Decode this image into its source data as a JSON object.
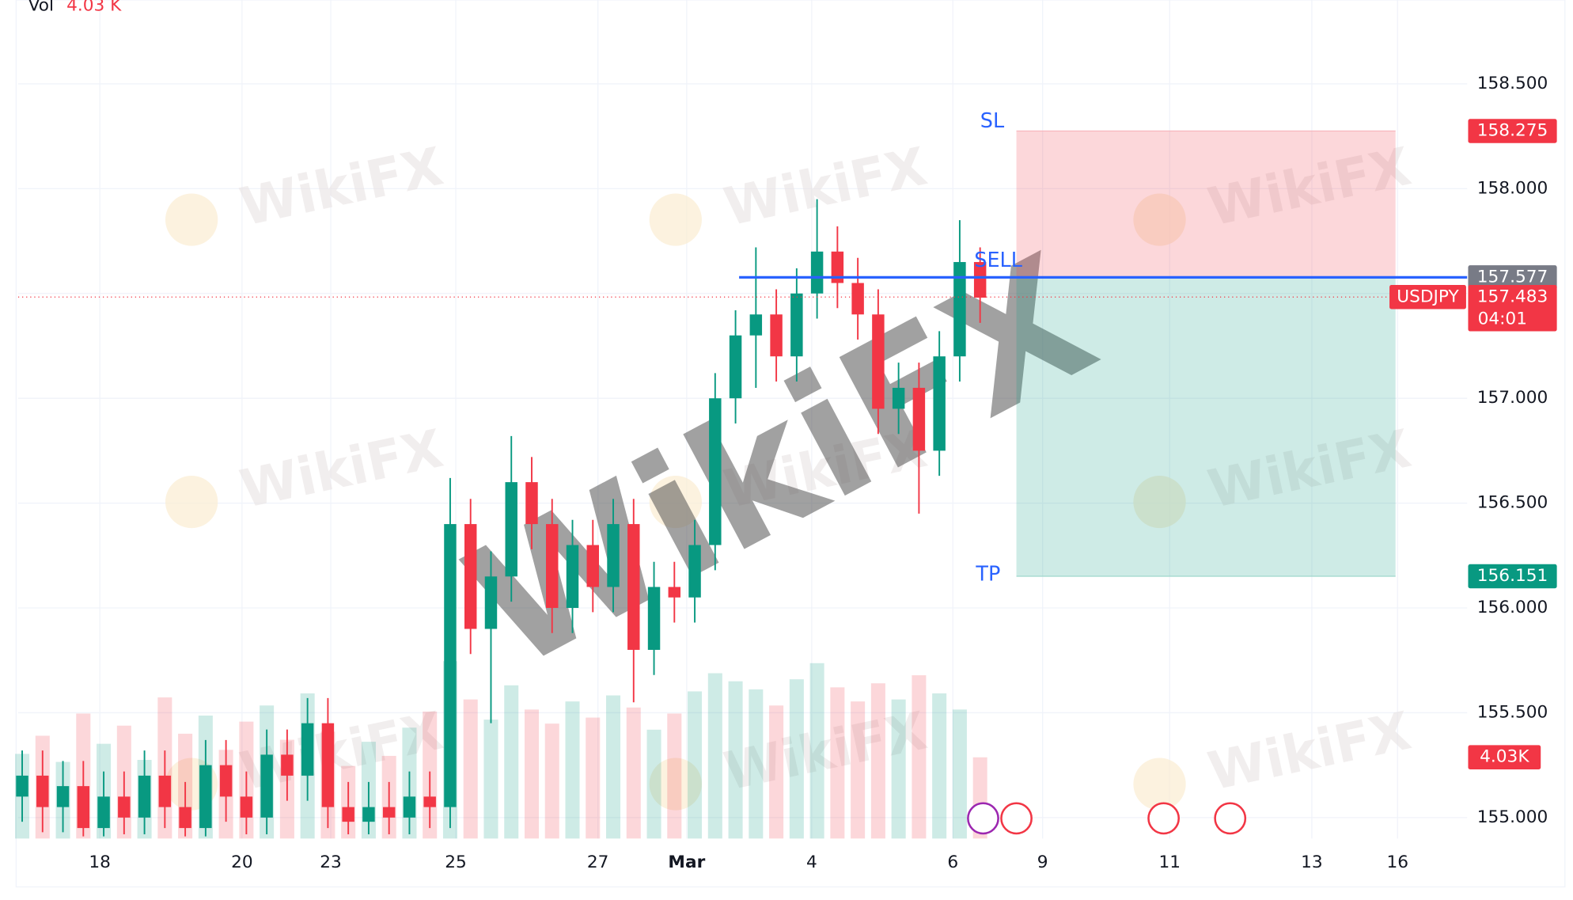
{
  "chart_data": {
    "type": "candlestick",
    "symbol": "USDJPY",
    "volume_label": "Vol",
    "volume_value": {
      "value": 4030,
      "label": "4.03 K"
    },
    "volume_tag": {
      "value": 4030,
      "label": "4.03K"
    },
    "countdown": "04:01",
    "watermark": "WikiFX",
    "x_labels": [
      "18",
      "20",
      "23",
      "25",
      "27",
      "Mar",
      "4",
      "6",
      "9",
      "11",
      "13",
      "16"
    ],
    "ylim": [
      154.9,
      158.9
    ],
    "yticks": [
      {
        "value": 155,
        "label": "155.000"
      },
      {
        "value": 155.5,
        "label": "155.500"
      },
      {
        "value": 156,
        "label": "156.000"
      },
      {
        "value": 156.5,
        "label": "156.500"
      },
      {
        "value": 157,
        "label": "157.000"
      },
      {
        "value": 157.5,
        "label": "157.500"
      },
      {
        "value": 158,
        "label": "158.000"
      },
      {
        "value": 158.5,
        "label": "158.500"
      }
    ],
    "grid": true,
    "up_color": "#089981",
    "down_color": "#f23645",
    "open": [
      155.1,
      155.2,
      155.05,
      155.15,
      154.95,
      155.1,
      155.0,
      155.2,
      155.05,
      154.95,
      155.25,
      155.1,
      155.0,
      155.3,
      155.2,
      155.45,
      155.05,
      154.98,
      155.05,
      155.0,
      155.1,
      155.05,
      156.4,
      155.9,
      156.15,
      156.6,
      156.4,
      156.0,
      156.3,
      156.1,
      156.4,
      155.8,
      156.1,
      156.05,
      156.3,
      157.0,
      157.3,
      157.4,
      157.2,
      157.5,
      157.7,
      157.55,
      157.4,
      156.95,
      157.05,
      156.75,
      157.2,
      157.65
    ],
    "high": [
      155.32,
      155.32,
      155.27,
      155.27,
      155.22,
      155.22,
      155.32,
      155.32,
      155.17,
      155.37,
      155.37,
      155.22,
      155.42,
      155.42,
      155.57,
      155.57,
      155.17,
      155.17,
      155.17,
      155.22,
      155.22,
      156.62,
      156.52,
      156.27,
      156.82,
      156.72,
      156.52,
      156.42,
      156.42,
      156.52,
      156.52,
      156.22,
      156.22,
      156.42,
      157.12,
      157.42,
      157.72,
      157.52,
      157.62,
      157.95,
      157.82,
      157.67,
      157.52,
      157.17,
      157.17,
      157.32,
      157.85,
      157.72
    ],
    "low": [
      154.98,
      154.93,
      154.93,
      154.91,
      154.91,
      154.92,
      154.92,
      154.95,
      154.91,
      154.91,
      154.98,
      154.92,
      154.92,
      155.08,
      155.08,
      154.95,
      154.92,
      154.92,
      154.92,
      154.92,
      154.95,
      154.95,
      155.78,
      155.45,
      156.03,
      156.28,
      155.88,
      155.88,
      155.98,
      155.98,
      155.55,
      155.68,
      155.93,
      155.93,
      156.18,
      156.88,
      157.05,
      157.08,
      157.08,
      157.38,
      157.43,
      157.28,
      156.83,
      156.83,
      156.45,
      156.63,
      157.08,
      157.36
    ],
    "close": [
      155.2,
      155.05,
      155.15,
      154.95,
      155.1,
      155.0,
      155.2,
      155.05,
      154.95,
      155.25,
      155.1,
      155.0,
      155.3,
      155.2,
      155.45,
      155.05,
      154.98,
      155.05,
      155.0,
      155.1,
      155.05,
      156.4,
      155.9,
      156.15,
      156.6,
      156.4,
      156.0,
      156.3,
      156.1,
      156.4,
      155.8,
      156.1,
      156.05,
      156.3,
      157.0,
      157.3,
      157.4,
      157.2,
      157.5,
      157.7,
      157.55,
      157.4,
      156.95,
      157.05,
      156.75,
      157.2,
      157.65,
      157.48
    ],
    "volume": [
      4200,
      5100,
      3800,
      6200,
      4700,
      5600,
      3900,
      7000,
      5200,
      6100,
      4400,
      5800,
      6600,
      4900,
      7200,
      5300,
      3600,
      4800,
      4100,
      5500,
      6300,
      8800,
      6900,
      5900,
      7600,
      6400,
      5700,
      6800,
      6000,
      7100,
      6500,
      5400,
      6200,
      7300,
      8200,
      7800,
      7400,
      6600,
      7900,
      8700,
      7500,
      6800,
      7700,
      6900,
      8100,
      7200,
      6400,
      4030
    ],
    "vlim": [
      0,
      12000
    ],
    "position": {
      "sl_label": "SL",
      "sl": 158.275,
      "entry_label": "SELL",
      "entry": 157.577,
      "tp_label": "TP",
      "tp": 156.151,
      "last": 157.483
    }
  }
}
